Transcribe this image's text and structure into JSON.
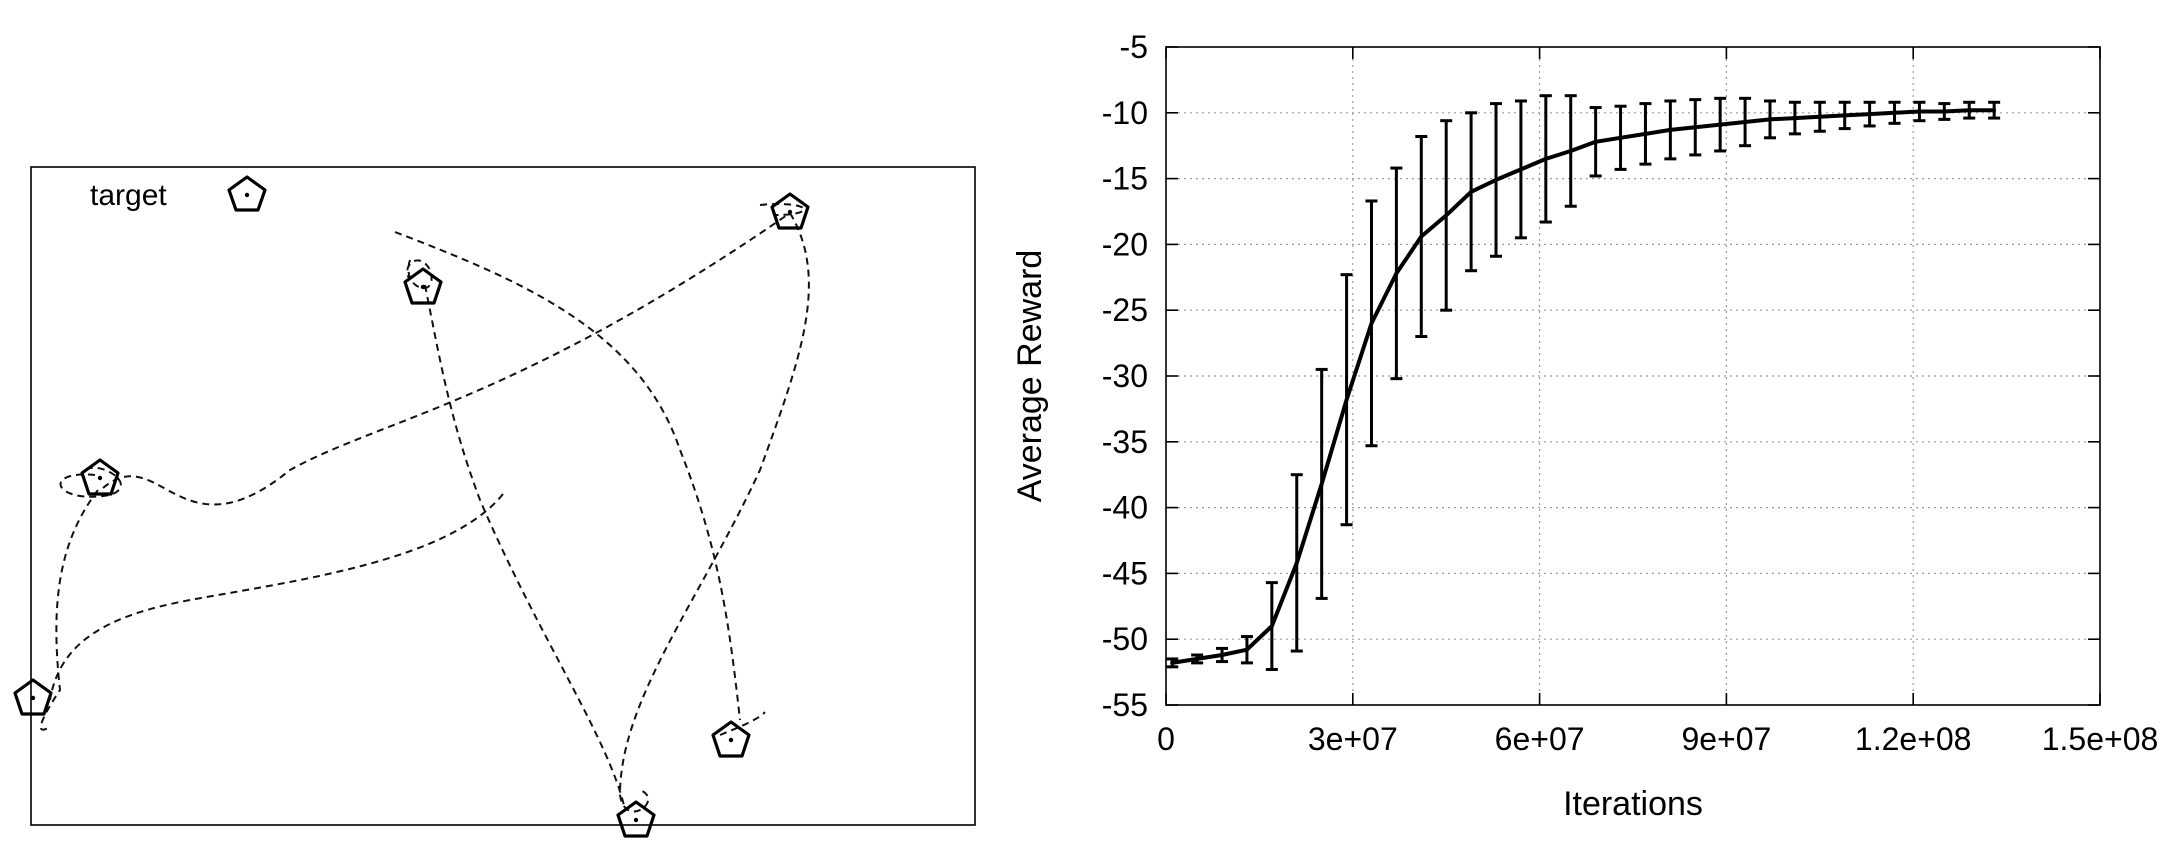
{
  "trajectory_panel": {
    "legend_label": "target"
  },
  "chart_data": {
    "type": "line",
    "title": "",
    "xlabel": "Iterations",
    "ylabel": "Average Reward",
    "xlim": [
      0,
      150000000
    ],
    "ylim": [
      -55,
      -5
    ],
    "x_tick_labels": [
      "0",
      "3e+07",
      "6e+07",
      "9e+07",
      "1.2e+08",
      "1.5e+08"
    ],
    "y_tick_labels": [
      "-5",
      "-10",
      "-15",
      "-20",
      "-25",
      "-30",
      "-35",
      "-40",
      "-45",
      "-50",
      "-55"
    ],
    "grid": true,
    "series": [
      {
        "x": [
          1000000,
          5000000,
          9000000,
          13000000,
          17000000,
          21000000,
          25000000,
          29000000,
          33000000,
          37000000,
          41000000,
          45000000,
          49000000,
          53000000,
          57000000,
          61000000,
          65000000,
          69000000,
          73000000,
          77000000,
          81000000,
          85000000,
          89000000,
          93000000,
          97000000,
          101000000,
          105000000,
          109000000,
          113000000,
          117000000,
          121000000,
          125000000,
          129000000,
          133000000
        ],
        "y": [
          -51.8,
          -51.5,
          -51.2,
          -50.8,
          -49.0,
          -44.2,
          -38.2,
          -31.8,
          -26.0,
          -22.2,
          -19.4,
          -17.8,
          -16.0,
          -15.1,
          -14.3,
          -13.5,
          -12.9,
          -12.2,
          -11.9,
          -11.6,
          -11.3,
          -11.1,
          -10.9,
          -10.7,
          -10.5,
          -10.4,
          -10.3,
          -10.2,
          -10.1,
          -10.0,
          -9.9,
          -9.9,
          -9.8,
          -9.8
        ],
        "error": [
          0.3,
          0.3,
          0.5,
          1.0,
          3.3,
          6.7,
          8.7,
          9.5,
          9.3,
          8.0,
          7.6,
          7.2,
          6.0,
          5.8,
          5.2,
          4.8,
          4.2,
          2.6,
          2.4,
          2.3,
          2.2,
          2.1,
          2.0,
          1.8,
          1.4,
          1.2,
          1.1,
          1.0,
          0.9,
          0.8,
          0.7,
          0.6,
          0.6,
          0.6
        ]
      }
    ]
  },
  "colors": {
    "line": "#000000",
    "grid": "#9a9a9a",
    "trajectory": "#111111"
  }
}
